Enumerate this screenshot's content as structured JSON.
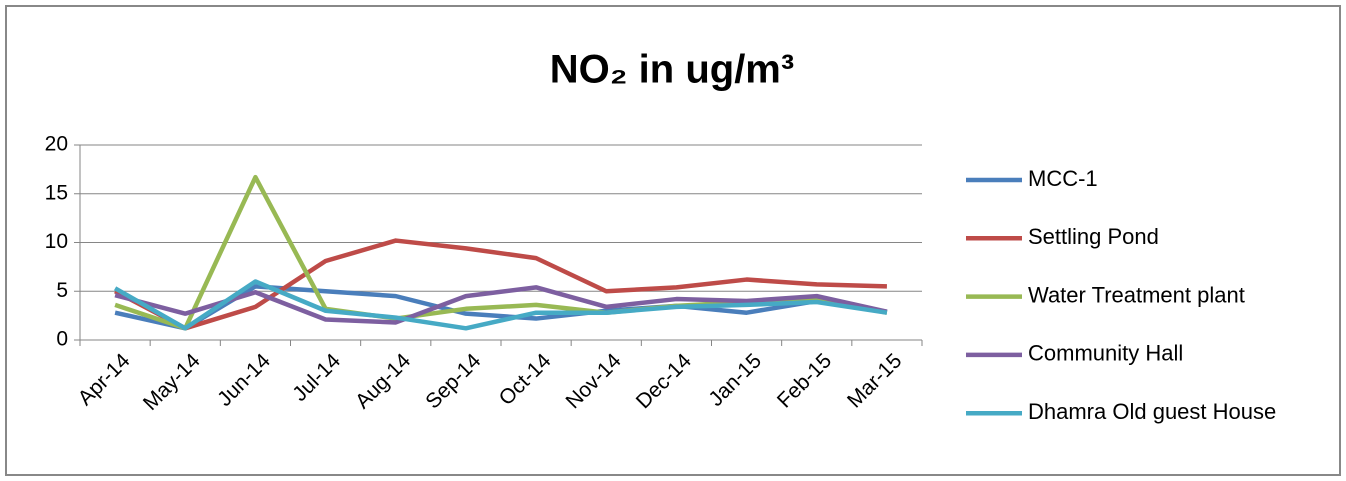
{
  "chart_data": {
    "type": "line",
    "title": "NO₂ in ug/m³",
    "categories": [
      "Apr-14",
      "May-14",
      "Jun-14",
      "Jul-14",
      "Aug-14",
      "Sep-14",
      "Oct-14",
      "Nov-14",
      "Dec-14",
      "Jan-15",
      "Feb-15",
      "Mar-15"
    ],
    "series": [
      {
        "name": "MCC-1",
        "color": "#4a7ebb",
        "values": [
          2.8,
          1.2,
          5.5,
          5.0,
          4.5,
          2.7,
          2.2,
          3.0,
          3.5,
          2.8,
          4.0,
          2.9
        ]
      },
      {
        "name": "Settling Pond",
        "color": "#be4b48",
        "values": [
          5.0,
          1.2,
          3.4,
          8.1,
          10.2,
          9.4,
          8.4,
          5.0,
          5.4,
          6.2,
          5.7,
          5.5
        ]
      },
      {
        "name": "Water Treatment plant",
        "color": "#98b954",
        "values": [
          3.6,
          1.2,
          16.7,
          3.2,
          2.2,
          3.2,
          3.6,
          2.8,
          3.5,
          3.9,
          4.2,
          2.8
        ]
      },
      {
        "name": "Community Hall",
        "color": "#7d5fa0",
        "values": [
          4.6,
          2.7,
          4.9,
          2.1,
          1.8,
          4.5,
          5.4,
          3.4,
          4.2,
          4.0,
          4.5,
          2.9
        ]
      },
      {
        "name": "Dhamra Old guest House",
        "color": "#46aac5",
        "values": [
          5.3,
          1.2,
          6.0,
          3.0,
          2.3,
          1.2,
          2.8,
          2.8,
          3.4,
          3.6,
          3.9,
          2.8
        ]
      }
    ],
    "ylim": [
      0,
      20
    ],
    "yticks": [
      0,
      5,
      10,
      15,
      20
    ],
    "grid": true,
    "legend": "right"
  }
}
